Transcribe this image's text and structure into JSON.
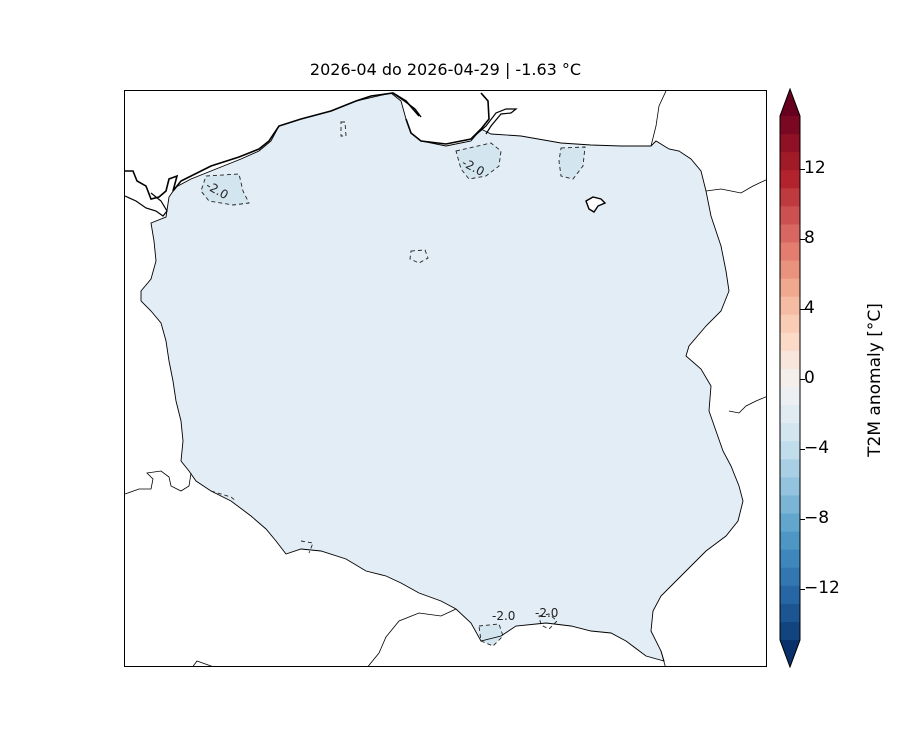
{
  "title": "2026-04 do 2026-04-29 | -1.63 °C",
  "map": {
    "fill_color": "#e3edf5",
    "anomaly_fill_color": "#d3e5ef",
    "contour_labels": [
      "-2.0",
      "-2.0",
      "-2.0",
      "-2.0"
    ]
  },
  "colorbar": {
    "label": "T2M anomaly [°C]",
    "ticks": [
      "12",
      "8",
      "4",
      "0",
      "−4",
      "−8",
      "−12"
    ],
    "colors": [
      "#67001f",
      "#7a0822",
      "#8e1125",
      "#a11a28",
      "#b2232d",
      "#bf3a3e",
      "#cb5050",
      "#d86762",
      "#e27d6f",
      "#e9927d",
      "#f0a88e",
      "#f6bca3",
      "#f9ccb5",
      "#fbdac8",
      "#f8e6dc",
      "#f4efeb",
      "#ecf0f3",
      "#e1ebf2",
      "#d3e5ef",
      "#c1dcea",
      "#a9cfe4",
      "#93c3de",
      "#7ab5d6",
      "#62a6cd",
      "#4e97c4",
      "#3e87bc",
      "#3277b1",
      "#2766a4",
      "#1c5592",
      "#12447f",
      "#08306b"
    ]
  }
}
